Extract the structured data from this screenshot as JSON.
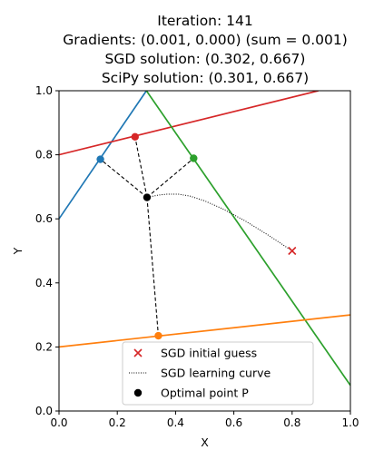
{
  "chart_data": {
    "type": "line",
    "title_lines": [
      "Iteration: 141",
      "Gradients: (0.001, 0.000) (sum = 0.001)",
      "SGD solution: (0.302, 0.667)",
      "SciPy solution: (0.301, 0.667)"
    ],
    "xlabel": "X",
    "ylabel": "Y",
    "xlim": [
      0.0,
      1.0
    ],
    "ylim": [
      0.0,
      1.0
    ],
    "xticks": [
      "0.0",
      "0.2",
      "0.4",
      "0.6",
      "0.8",
      "1.0"
    ],
    "yticks": [
      "0.0",
      "0.2",
      "0.4",
      "0.6",
      "0.8",
      "1.0"
    ],
    "grid": false,
    "legend_position": "bottom-center",
    "lines": [
      {
        "color": "#1f77b4",
        "points": [
          [
            0.0,
            0.6
          ],
          [
            0.3,
            1.0
          ]
        ]
      },
      {
        "color": "#d62728",
        "points": [
          [
            0.0,
            0.8
          ],
          [
            0.89,
            1.0
          ]
        ]
      },
      {
        "color": "#2ca02c",
        "points": [
          [
            0.3,
            1.0
          ],
          [
            1.0,
            0.08
          ]
        ]
      },
      {
        "color": "#ff7f0e",
        "points": [
          [
            0.0,
            0.2
          ],
          [
            1.0,
            0.3
          ]
        ]
      }
    ],
    "projection_points": [
      {
        "color": "#1f77b4",
        "x": 0.142,
        "y": 0.786
      },
      {
        "color": "#d62728",
        "x": 0.261,
        "y": 0.856
      },
      {
        "color": "#2ca02c",
        "x": 0.462,
        "y": 0.789
      },
      {
        "color": "#ff7f0e",
        "x": 0.341,
        "y": 0.235
      }
    ],
    "optimal_point": {
      "x": 0.302,
      "y": 0.667,
      "color": "#000000"
    },
    "initial_guess": {
      "x": 0.8,
      "y": 0.5,
      "color": "#d62728"
    },
    "learning_curve": [
      [
        0.8,
        0.5
      ],
      [
        0.72,
        0.548
      ],
      [
        0.64,
        0.593
      ],
      [
        0.56,
        0.632
      ],
      [
        0.5,
        0.656
      ],
      [
        0.45,
        0.671
      ],
      [
        0.41,
        0.677
      ],
      [
        0.37,
        0.677
      ],
      [
        0.34,
        0.674
      ],
      [
        0.302,
        0.667
      ]
    ],
    "legend": [
      {
        "label": "SGD initial guess",
        "marker": "x",
        "color": "#d62728"
      },
      {
        "label": "SGD learning curve",
        "marker": "dotted-line",
        "color": "#000000"
      },
      {
        "label": "Optimal point P",
        "marker": "dot",
        "color": "#000000"
      }
    ]
  }
}
